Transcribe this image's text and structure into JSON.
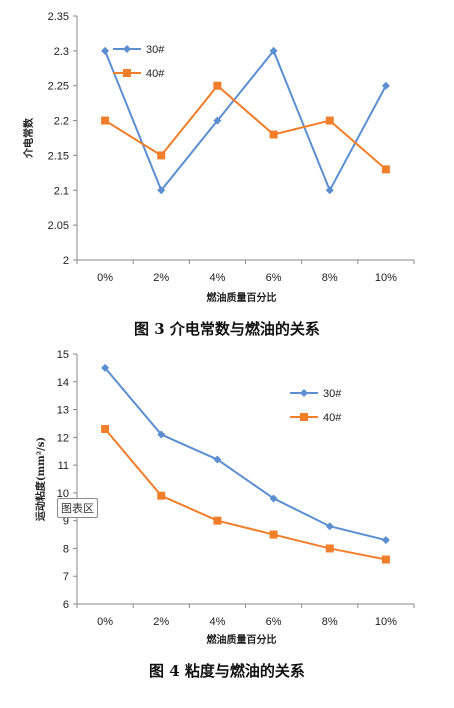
{
  "chart_data": [
    {
      "type": "line",
      "categories": [
        "0%",
        "2%",
        "4%",
        "6%",
        "8%",
        "10%"
      ],
      "series": [
        {
          "name": "30#",
          "values": [
            2.3,
            2.1,
            2.2,
            2.3,
            2.1,
            2.25
          ],
          "color": "#5B8FD0",
          "marker": "diamond"
        },
        {
          "name": "40#",
          "values": [
            2.2,
            2.15,
            2.25,
            2.18,
            2.2,
            2.13
          ],
          "color": "#F07E2A",
          "marker": "square"
        }
      ],
      "yticks": [
        "2.35",
        "2.3",
        "2.25",
        "2.2",
        "2.15",
        "2.1",
        "2.05",
        "2"
      ],
      "ylim": [
        2,
        2.35
      ],
      "xlabel": "燃油质量百分比",
      "ylabel": "介电常数",
      "legend_position": "top-left",
      "grid": false
    },
    {
      "type": "line",
      "categories": [
        "0%",
        "2%",
        "4%",
        "6%",
        "8%",
        "10%"
      ],
      "series": [
        {
          "name": "30#",
          "values": [
            14.5,
            12.1,
            11.2,
            9.8,
            8.8,
            8.3
          ],
          "color": "#5B8FD0",
          "marker": "diamond"
        },
        {
          "name": "40#",
          "values": [
            12.3,
            9.9,
            9.0,
            8.5,
            8.0,
            7.6
          ],
          "color": "#F07E2A",
          "marker": "square"
        }
      ],
      "yticks": [
        "15",
        "14",
        "13",
        "12",
        "11",
        "10",
        "9",
        "8",
        "7",
        "6"
      ],
      "ylim": [
        6,
        15
      ],
      "xlabel": "燃油质量百分比",
      "ylabel": "运动粘度(mm²/s)",
      "legend_position": "top-right",
      "grid": false
    }
  ],
  "captions": {
    "fig3": "图 3    介电常数与燃油的关系",
    "fig4": "图 4    粘度与燃油的关系"
  },
  "tooltip": "图表区"
}
